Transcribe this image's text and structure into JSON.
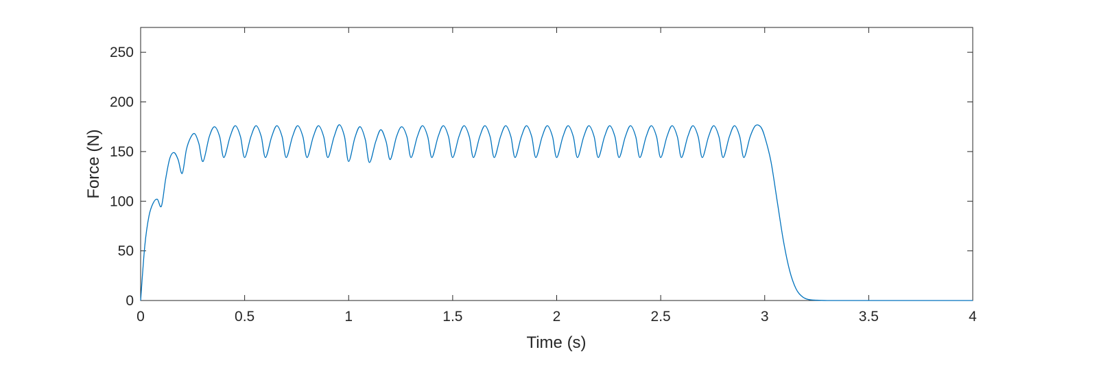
{
  "chart_data": {
    "type": "line",
    "title": "",
    "xlabel": "Time (s)",
    "ylabel": "Force (N)",
    "xlim": [
      0,
      4
    ],
    "ylim": [
      0,
      275
    ],
    "xticks": [
      0,
      0.5,
      1,
      1.5,
      2,
      2.5,
      3,
      3.5,
      4
    ],
    "xtick_labels": [
      "0",
      "0.5",
      "1",
      "1.5",
      "2",
      "2.5",
      "3",
      "3.5",
      "4"
    ],
    "yticks": [
      0,
      50,
      100,
      150,
      200,
      250
    ],
    "ytick_labels": [
      "0",
      "50",
      "100",
      "150",
      "200",
      "250"
    ],
    "grid": false,
    "legend": "none",
    "line_color": "#0072BD",
    "series": [
      {
        "x": [
          0,
          0.02,
          0.04,
          0.06,
          0.08,
          0.1,
          0.12,
          0.14,
          0.16,
          0.18,
          0.2,
          0.22,
          0.24,
          0.26,
          0.28,
          0.3,
          0.33,
          0.355,
          0.38,
          0.4,
          0.43,
          0.455,
          0.48,
          0.5,
          0.53,
          0.555,
          0.58,
          0.6,
          0.63,
          0.655,
          0.68,
          0.7,
          0.73,
          0.755,
          0.78,
          0.8,
          0.83,
          0.855,
          0.88,
          0.9,
          0.93,
          0.955,
          0.98,
          1.0,
          1.03,
          1.055,
          1.08,
          1.1,
          1.13,
          1.155,
          1.18,
          1.2,
          1.23,
          1.255,
          1.28,
          1.3,
          1.33,
          1.355,
          1.38,
          1.4,
          1.43,
          1.455,
          1.48,
          1.5,
          1.53,
          1.555,
          1.58,
          1.6,
          1.63,
          1.655,
          1.68,
          1.7,
          1.73,
          1.755,
          1.78,
          1.8,
          1.83,
          1.855,
          1.88,
          1.9,
          1.93,
          1.955,
          1.98,
          2.0,
          2.03,
          2.055,
          2.08,
          2.1,
          2.13,
          2.155,
          2.18,
          2.2,
          2.23,
          2.255,
          2.28,
          2.3,
          2.33,
          2.355,
          2.38,
          2.4,
          2.43,
          2.455,
          2.48,
          2.5,
          2.53,
          2.555,
          2.58,
          2.6,
          2.63,
          2.655,
          2.68,
          2.7,
          2.73,
          2.755,
          2.78,
          2.8,
          2.83,
          2.855,
          2.88,
          2.9,
          2.93,
          2.955,
          2.98,
          3.0,
          3.03,
          3.06,
          3.09,
          3.12,
          3.15,
          3.18,
          3.21,
          3.25,
          3.3,
          3.4,
          3.6,
          3.8,
          4.0
        ],
        "y": [
          0,
          55,
          85,
          98,
          102,
          95,
          122,
          143,
          149,
          142,
          128,
          152,
          164,
          168,
          158,
          140,
          165,
          175,
          165,
          144,
          165,
          176,
          165,
          144,
          165,
          176,
          165,
          144,
          165,
          176,
          165,
          144,
          165,
          176,
          165,
          144,
          165,
          176,
          165,
          144,
          165,
          177,
          165,
          140,
          164,
          175,
          162,
          139,
          160,
          172,
          160,
          142,
          165,
          175,
          165,
          144,
          165,
          176,
          165,
          144,
          165,
          176,
          165,
          144,
          165,
          176,
          165,
          144,
          165,
          176,
          165,
          144,
          165,
          176,
          165,
          144,
          165,
          176,
          165,
          144,
          165,
          176,
          165,
          144,
          165,
          176,
          165,
          144,
          165,
          176,
          165,
          144,
          165,
          176,
          165,
          144,
          165,
          176,
          165,
          144,
          165,
          176,
          165,
          144,
          165,
          176,
          165,
          144,
          165,
          176,
          165,
          144,
          165,
          176,
          165,
          144,
          165,
          176,
          165,
          144,
          165,
          176,
          175,
          165,
          140,
          100,
          60,
          30,
          12,
          4,
          1,
          0.3,
          0,
          0,
          0,
          0,
          0
        ]
      }
    ]
  }
}
